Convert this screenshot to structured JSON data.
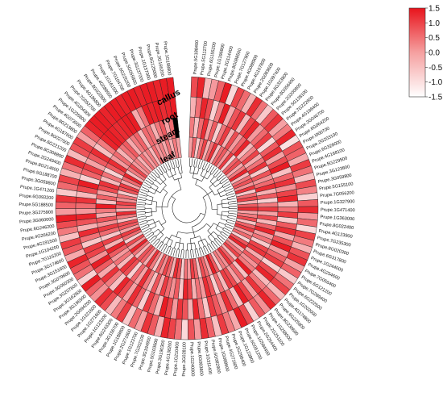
{
  "chart_data": {
    "type": "heatmap",
    "layout": "circular",
    "rings": [
      "callus",
      "root",
      "steam",
      "leaf"
    ],
    "colorbar": {
      "ticks": [
        1.5,
        1.0,
        0.5,
        0.0,
        -0.5,
        -1.0,
        -1.5
      ],
      "tick_labels": [
        "1.5",
        "1.0",
        "0.5",
        "0.0",
        "-0.5",
        "-1.0",
        "-1.5"
      ],
      "range": [
        -1.5,
        1.5
      ],
      "low_color": "#ffffff",
      "high_color": "#e8141c"
    },
    "genes": [
      "Prupe.5G188400",
      "Prupe.5G112700",
      "Prupe.6G155200",
      "Prupe.1G196800",
      "Prupe.2G114400",
      "Prupe.8G088500",
      "Prupe.7G127900",
      "Prupe.4G088900",
      "Prupe.4G107800",
      "Prupe.2G083600",
      "Prupe.1G097400",
      "Prupe.6G323800",
      "Prupe.8G056400",
      "Prupe.2G200800",
      "Prupe.5G128100",
      "Prupe.7G222600",
      "Prupe.4G196400",
      "Prupe.2G046700",
      "Prupe.6G064200",
      "Prupe.I000700",
      "Prupe.2G203100",
      "Prupe.6G328000",
      "Prupe.4G168100",
      "Prupe.5G229500",
      "Prupe.3G123800",
      "Prupe.3G059800",
      "Prupe.5G155100",
      "Prupe.7G056200",
      "Prupe.1G327900",
      "Prupe.1G471400",
      "Prupe.1G363000",
      "Prupe.8G022400",
      "Prupe.4G123900",
      "Prupe.7G235300",
      "Prupe.8G020300",
      "Prupe.6G317800",
      "Prupe.1G244000",
      "Prupe.4G254600",
      "Prupe.7G056400",
      "Prupe.6G121200",
      "Prupe.7G289400",
      "Prupe.6G222500",
      "Prupe.1G202000",
      "Prupe.4G174800",
      "Prupe.6G225900",
      "Prupe.8G230600",
      "Prupe.1G268500",
      "Prupe.2G251100",
      "Prupe.2G254400",
      "Prupe.1G584400",
      "Prupe.6G051200",
      "Prupe.1G123900",
      "Prupe.2G298400",
      "Prupe.4G271600",
      "Prupe.1G088600",
      "Prupe.6G082900",
      "Prupe.1G311400",
      "Prupe.6G083800",
      "Prupe.1G240000",
      "Prupe.3G028100",
      "Prupe.1G210400",
      "Prupe.4G138200",
      "Prupe.3G190300",
      "Prupe.5G103600",
      "Prupe.3G194900",
      "Prupe.7G202100",
      "Prupe.1G123700",
      "Prupe.2G271600",
      "Prupe.1G188800",
      "Prupe.3G156700",
      "Prupe.6G243300",
      "Prupe.1G123200",
      "Prupe.1G271600",
      "Prupe.1G321600",
      "Prupe.2G094200",
      "Prupe.3G196500",
      "Prupe.3G162500",
      "Prupe.3G207600",
      "Prupe.3G060300",
      "Prupe.3G079600",
      "Prupe.3G151600",
      "Prupe.3G174600",
      "Prupe.7G115200",
      "Prupe.1G104200",
      "Prupe.4G191500",
      "Prupe.4G266200",
      "Prupe.6G246200",
      "Prupe.3G060000",
      "Prupe.3G275900",
      "Prupe.5G188500",
      "Prupe.6G093200",
      "Prupe.1G471200",
      "Prupe.3G059800",
      "Prupe.5G188700",
      "Prupe.8G214600",
      "Prupe.2G249400",
      "Prupe.8G308800",
      "Prupe.6G221200",
      "Prupe.8G027000",
      "Prupe.4G187600",
      "Prupe.8G213800",
      "Prupe.4G073000",
      "Prupe.1G235800",
      "Prupe.4G204300",
      "Prupe.7G052700",
      "Prupe.4G186800",
      "Prupe.8G022800",
      "Prupe.4G088500",
      "Prupe.1G161500",
      "Prupe.7G104700",
      "Prupe.6G225200",
      "Prupe.5G055800",
      "Prupe.3G137000",
      "Prupe.1G157000",
      "Prupe.8G125000",
      "Prupe.2G166200",
      "Prupe.1G198800"
    ],
    "values": {
      "callus": [
        0.8,
        1.3,
        -0.6,
        -0.2,
        0.5,
        1.4,
        -1.0,
        0.9,
        0.4,
        -0.5,
        1.2,
        0.3,
        -0.8,
        0.6,
        1.1,
        -0.3,
        0.2,
        1.3,
        -1.1,
        0.7,
        0.5,
        -0.4,
        1.0,
        0.3,
        -0.7,
        0.8,
        0.1,
        -0.9,
        0.6,
        1.2,
        -0.2,
        0.4,
        -1.0,
        0.9,
        0.2,
        -0.5,
        0.7,
        1.1,
        -0.3,
        0.5,
        -0.8,
        0.3,
        0.9,
        -0.6,
        0.4,
        1.3,
        -0.1,
        0.6,
        -0.9,
        0.8,
        1.4,
        -0.4,
        0.2,
        1.0,
        -0.7,
        0.5,
        1.2,
        -0.2,
        0.7,
        -1.0,
        0.3,
        0.9,
        1.3,
        -0.5,
        0.6,
        1.1,
        -0.3,
        0.4,
        -0.8,
        1.0,
        0.2,
        -0.6,
        0.8,
        1.2,
        -0.1,
        0.5,
        1.4,
        -0.9,
        0.3,
        0.7,
        1.3,
        -0.4,
        0.6,
        1.0,
        -0.7,
        0.2,
        0.8,
        1.4,
        -0.2,
        0.5,
        1.1,
        -0.8,
        0.4,
        0.9,
        -0.5,
        0.3,
        1.2,
        -0.6,
        0.7,
        1.0,
        -0.3,
        0.5,
        1.3,
        1.4,
        1.4,
        1.3,
        1.4,
        1.4,
        1.3,
        1.4,
        1.4,
        1.3,
        1.4,
        1.4,
        1.3,
        1.4,
        1.4
      ],
      "root": [
        -0.5,
        0.3,
        1.3,
        0.8,
        -0.9,
        0.2,
        1.4,
        -0.4,
        0.7,
        1.1,
        -0.6,
        0.9,
        1.3,
        -0.2,
        0.4,
        1.0,
        -1.0,
        0.6,
        1.2,
        -0.3,
        0.8,
        1.4,
        -0.7,
        0.5,
        1.1,
        -0.1,
        0.9,
        1.3,
        -0.5,
        0.3,
        1.0,
        -0.8,
        0.6,
        1.2,
        -0.4,
        0.7,
        1.4,
        -0.2,
        0.5,
        1.0,
        -0.9,
        0.8,
        1.3,
        -0.6,
        0.2,
        1.1,
        -0.3,
        0.9,
        1.4,
        -0.7,
        0.4,
        1.2,
        -0.1,
        0.6,
        1.0,
        -0.8,
        0.3,
        1.3,
        -0.5,
        0.7,
        1.1,
        -0.2,
        0.9,
        1.4,
        -0.6,
        0.4,
        1.0,
        -0.9,
        0.5,
        1.2,
        -0.3,
        0.8,
        1.3,
        -0.7,
        0.2,
        1.1,
        -0.4,
        0.6,
        1.4,
        -0.1,
        0.9,
        1.0,
        -0.8,
        0.3,
        1.2,
        -0.5,
        0.7,
        1.3,
        -0.2,
        0.4,
        1.1,
        -0.6,
        0.8,
        1.4,
        -0.9,
        0.5,
        1.0,
        -0.3,
        0.6,
        1.2,
        -0.7,
        0.2,
        1.3,
        1.4,
        1.3,
        1.2,
        1.3,
        1.4,
        1.4,
        -0.4,
        0.3,
        1.4,
        1.3,
        1.4,
        1.2,
        1.3,
        1.4
      ],
      "steam": [
        0.2,
        -0.7,
        0.4,
        1.2,
        -0.3,
        0.6,
        -0.9,
        0.3,
        1.0,
        -0.5,
        0.8,
        -0.2,
        0.5,
        1.3,
        -0.6,
        0.1,
        0.9,
        -0.4,
        0.3,
        1.1,
        -0.8,
        0.7,
        -0.1,
        0.4,
        1.2,
        -0.5,
        0.6,
        -0.9,
        0.2,
        1.0,
        -0.3,
        0.8,
        -0.6,
        0.5,
        1.3,
        -0.2,
        0.3,
        -0.8,
        0.9,
        1.1,
        -0.4,
        0.6,
        -0.1,
        0.2,
        1.4,
        -0.7,
        0.5,
        -0.3,
        0.8,
        1.0,
        -0.6,
        0.4,
        -0.9,
        0.7,
        1.2,
        -0.2,
        0.3,
        -0.5,
        0.9,
        1.3,
        -0.8,
        0.6,
        -0.1,
        0.4,
        1.0,
        -0.4,
        0.7,
        -0.7,
        0.2,
        1.2,
        -0.3,
        0.5,
        -0.9,
        0.8,
        1.1,
        -0.6,
        0.3,
        -0.2,
        0.6,
        1.3,
        -0.5,
        0.9,
        -0.8,
        0.4,
        1.0,
        -0.1,
        0.7,
        -0.4,
        0.2,
        1.4,
        -0.7,
        0.5,
        -0.3,
        0.8,
        1.1,
        -0.6,
        0.3,
        -0.9,
        0.6,
        1.2,
        -0.2,
        0.4,
        -0.5,
        0.3,
        0.6,
        -0.4,
        0.2,
        0.5,
        -0.6,
        0.4,
        0.3,
        -0.5,
        0.2,
        0.6,
        -0.3,
        0.4
      ],
      "leaf": [
        -0.3,
        0.5,
        -0.8,
        0.2,
        0.9,
        -0.5,
        0.3,
        1.1,
        -0.7,
        0.4,
        0.6,
        -0.2,
        1.0,
        -0.9,
        0.5,
        0.8,
        -0.4,
        0.2,
        1.3,
        -0.6,
        0.3,
        0.7,
        -0.1,
        1.1,
        -0.8,
        0.4,
        0.9,
        -0.5,
        0.6,
        1.2,
        -0.3,
        0.2,
        0.8,
        -0.7,
        0.5,
        1.0,
        -0.2,
        0.4,
        -0.9,
        0.7,
        1.3,
        -0.4,
        0.3,
        0.9,
        -0.6,
        0.5,
        1.1,
        -0.1,
        0.2,
        -0.8,
        0.6,
        1.4,
        -0.3,
        0.4,
        0.8,
        -0.7,
        0.5,
        1.0,
        -0.2,
        0.3,
        -0.9,
        0.7,
        1.2,
        -0.5,
        0.4,
        0.9,
        -0.1,
        0.6,
        -0.8,
        0.2,
        1.1,
        -0.4,
        0.5,
        0.7,
        -0.6,
        0.3,
        1.3,
        -0.2,
        0.8,
        -0.9,
        0.4,
        1.0,
        -0.3,
        0.6,
        0.8,
        -0.7,
        0.2,
        1.2,
        -0.5,
        0.5,
        0.9,
        -0.1,
        0.3,
        -0.8,
        0.7,
        1.0,
        -0.4,
        0.4,
        1.3,
        -0.6,
        0.2,
        0.8,
        -0.2,
        0.1,
        -0.5,
        0.3,
        -0.3,
        0.2,
        -0.6,
        0.4,
        -0.2,
        0.1,
        -0.4,
        0.3,
        -0.5,
        0.2,
        -0.3,
        0.1
      ]
    }
  }
}
